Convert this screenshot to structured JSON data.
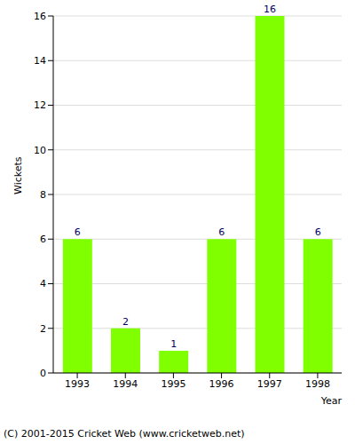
{
  "chart_data": {
    "type": "bar",
    "categories": [
      "1993",
      "1994",
      "1995",
      "1996",
      "1997",
      "1998"
    ],
    "values": [
      6,
      2,
      1,
      6,
      16,
      6
    ],
    "color": "#80ff00",
    "x_label": "Year",
    "y_label": "Wickets",
    "ylim": [
      0,
      16
    ],
    "yticks": [
      0,
      2,
      4,
      6,
      8,
      10,
      12,
      14,
      16
    ],
    "grid": true,
    "data_labels": true,
    "annotations": [
      "(C) 2001-2015 Cricket Web (www.cricketweb.net)"
    ]
  }
}
